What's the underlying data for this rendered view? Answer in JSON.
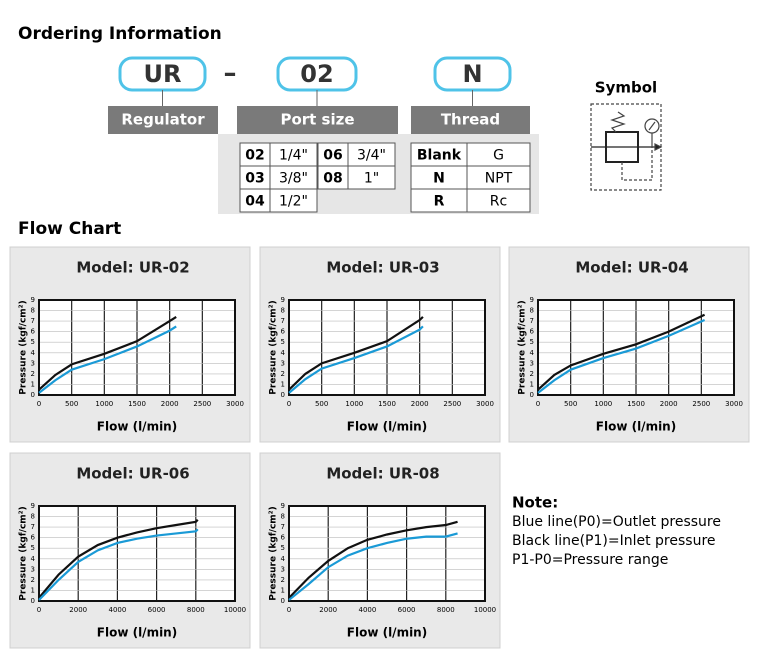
{
  "ordering": {
    "title": "Ordering Information",
    "codes": [
      {
        "code": "UR",
        "label": "Regulator"
      },
      {
        "code": "02",
        "label": "Port size"
      },
      {
        "code": "N",
        "label": "Thread"
      }
    ],
    "separator": "–",
    "port_sizes": [
      [
        "02",
        "1/4\""
      ],
      [
        "03",
        "3/8\""
      ],
      [
        "04",
        "1/2\""
      ],
      [
        "06",
        "3/4\""
      ],
      [
        "08",
        "1\""
      ]
    ],
    "threads": [
      [
        "Blank",
        "G"
      ],
      [
        "N",
        "NPT"
      ],
      [
        "R",
        "Rc"
      ]
    ],
    "symbol_title": "Symbol"
  },
  "flow_chart_title": "Flow Chart",
  "chart_data": [
    {
      "type": "line",
      "title": "Model: UR-02",
      "x_label": "Flow (l/min)",
      "y_label": "Pressure (kgf/cm²)",
      "xlim": [
        0,
        3000
      ],
      "xticks": [
        0,
        500,
        1000,
        1500,
        2000,
        2500,
        3000
      ],
      "ylim": [
        0,
        9
      ],
      "yticks": [
        0,
        1,
        2,
        3,
        4,
        5,
        6,
        7,
        8,
        9
      ],
      "grid": true,
      "series": [
        {
          "color": "#111111",
          "x": [
            0,
            250,
            500,
            1000,
            1500,
            2000,
            2100
          ],
          "values": [
            0.5,
            1.9,
            2.9,
            3.9,
            5.1,
            7.0,
            7.4
          ]
        },
        {
          "color": "#1a9ad6",
          "x": [
            0,
            250,
            500,
            1000,
            1500,
            2000,
            2100
          ],
          "values": [
            0.2,
            1.4,
            2.4,
            3.4,
            4.6,
            6.1,
            6.5
          ]
        }
      ]
    },
    {
      "type": "line",
      "title": "Model: UR-03",
      "x_label": "Flow (l/min)",
      "y_label": "Pressure (kgf/cm²)",
      "xlim": [
        0,
        3000
      ],
      "xticks": [
        0,
        500,
        1000,
        1500,
        2000,
        2500,
        3000
      ],
      "ylim": [
        0,
        9
      ],
      "yticks": [
        0,
        1,
        2,
        3,
        4,
        5,
        6,
        7,
        8,
        9
      ],
      "grid": true,
      "series": [
        {
          "color": "#111111",
          "x": [
            0,
            250,
            500,
            1000,
            1500,
            2000,
            2050
          ],
          "values": [
            0.5,
            2.0,
            3.0,
            4.0,
            5.1,
            7.1,
            7.4
          ]
        },
        {
          "color": "#1a9ad6",
          "x": [
            0,
            250,
            500,
            1000,
            1500,
            2000,
            2050
          ],
          "values": [
            0.2,
            1.5,
            2.5,
            3.5,
            4.6,
            6.2,
            6.5
          ]
        }
      ]
    },
    {
      "type": "line",
      "title": "Model: UR-04",
      "x_label": "Flow (l/min)",
      "y_label": "Pressure (kgf/cm²)",
      "xlim": [
        0,
        3000
      ],
      "xticks": [
        0,
        500,
        1000,
        1500,
        2000,
        2500,
        3000
      ],
      "ylim": [
        0,
        9
      ],
      "yticks": [
        0,
        1,
        2,
        3,
        4,
        5,
        6,
        7,
        8,
        9
      ],
      "grid": true,
      "series": [
        {
          "color": "#111111",
          "x": [
            0,
            250,
            500,
            1000,
            1500,
            2000,
            2550
          ],
          "values": [
            0.5,
            1.9,
            2.8,
            3.9,
            4.8,
            6.0,
            7.6
          ]
        },
        {
          "color": "#1a9ad6",
          "x": [
            0,
            250,
            500,
            1000,
            1500,
            2000,
            2550
          ],
          "values": [
            0.2,
            1.4,
            2.4,
            3.5,
            4.4,
            5.6,
            7.1
          ]
        }
      ]
    },
    {
      "type": "line",
      "title": "Model: UR-06",
      "x_label": "Flow (l/min)",
      "y_label": "Pressure (kgf/cm²)",
      "xlim": [
        0,
        10000
      ],
      "xticks": [
        0,
        2000,
        4000,
        6000,
        8000,
        10000
      ],
      "ylim": [
        0,
        9
      ],
      "yticks": [
        0,
        1,
        2,
        3,
        4,
        5,
        6,
        7,
        8,
        9
      ],
      "grid": true,
      "series": [
        {
          "color": "#111111",
          "x": [
            0,
            1000,
            2000,
            3000,
            4000,
            5000,
            6000,
            7000,
            8000,
            8100
          ],
          "values": [
            0.3,
            2.5,
            4.2,
            5.3,
            6.0,
            6.5,
            6.9,
            7.2,
            7.5,
            7.7
          ]
        },
        {
          "color": "#1a9ad6",
          "x": [
            0,
            1000,
            2000,
            3000,
            4000,
            5000,
            6000,
            7000,
            8000,
            8100
          ],
          "values": [
            0.1,
            2.0,
            3.7,
            4.8,
            5.5,
            5.9,
            6.2,
            6.4,
            6.6,
            6.8
          ]
        }
      ]
    },
    {
      "type": "line",
      "title": "Model: UR-08",
      "x_label": "Flow (l/min)",
      "y_label": "Pressure (kgf/cm²)",
      "xlim": [
        0,
        10000
      ],
      "xticks": [
        0,
        2000,
        4000,
        6000,
        8000,
        10000
      ],
      "ylim": [
        0,
        9
      ],
      "yticks": [
        0,
        1,
        2,
        3,
        4,
        5,
        6,
        7,
        8,
        9
      ],
      "grid": true,
      "series": [
        {
          "color": "#111111",
          "x": [
            0,
            1000,
            2000,
            3000,
            4000,
            5000,
            6000,
            7000,
            8000,
            8600
          ],
          "values": [
            0.3,
            2.2,
            3.8,
            5.0,
            5.8,
            6.3,
            6.7,
            7.0,
            7.2,
            7.5
          ]
        },
        {
          "color": "#1a9ad6",
          "x": [
            0,
            1000,
            2000,
            3000,
            4000,
            5000,
            6000,
            7000,
            8000,
            8600
          ],
          "values": [
            0.1,
            1.6,
            3.2,
            4.3,
            5.0,
            5.5,
            5.9,
            6.1,
            6.1,
            6.4
          ]
        }
      ]
    }
  ],
  "note": {
    "title": "Note:",
    "lines": [
      "Blue line(P0)=Outlet pressure",
      "Black line(P1)=Inlet pressure",
      "P1-P0=Pressure range"
    ]
  }
}
